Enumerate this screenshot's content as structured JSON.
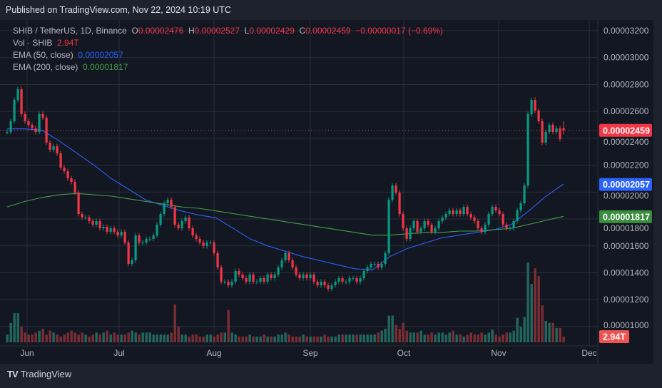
{
  "published": "Published on TradingView.com, Nov 22, 2024 10:19 UTC",
  "legend": {
    "symbol": "SHIB / TetherUS, 1D, Binance",
    "o_label": "O",
    "o": "0.00002476",
    "h_label": "H",
    "h": "0.00002527",
    "l_label": "L",
    "l": "0.00002429",
    "c_label": "C",
    "c": "0.00002459",
    "change": "−0.00000017 (−0.69%)",
    "vol_label": "Vol · SHIB",
    "vol": "2.94T",
    "ema50_label": "EMA (50, close)",
    "ema50": "0.00002057",
    "ema200_label": "EMA (200, close)",
    "ema200": "0.00001817"
  },
  "badges": {
    "last_price": "0.00002459",
    "ema50": "0.00002057",
    "ema200": "0.00001817",
    "volume": "2.94T"
  },
  "brand": "TradingView",
  "colors": {
    "up": "#089981",
    "down": "#f23645",
    "vol_up": "#22675e",
    "vol_down": "#7a2e33",
    "ema50": "#2962ff",
    "ema200": "#43a047",
    "bg": "#131722",
    "grid": "#2a2e39"
  },
  "chart_data": {
    "type": "candlestick",
    "title": "SHIB / TetherUS, 1D, Binance",
    "x_tick_labels": [
      "Jun",
      "Jul",
      "Aug",
      "Sep",
      "Oct",
      "Nov",
      "Dec"
    ],
    "y_tick_labels": [
      "0.00003200",
      "0.00003000",
      "0.00002800",
      "0.00002600",
      "0.00002400",
      "0.00002200",
      "0.00002000",
      "0.00001800",
      "0.00001600",
      "0.00001400",
      "0.00001200",
      "0.00001000"
    ],
    "ylim": [
      9.8e-06,
      3.22e-05
    ],
    "grid": true,
    "last_candle": {
      "open": 2.476e-05,
      "high": 2.527e-05,
      "low": 2.429e-05,
      "close": 2.459e-05
    },
    "close": [
      2.447e-05,
      2.527e-05,
      2.686e-05,
      2.765e-05,
      2.58e-05,
      2.527e-05,
      2.5e-05,
      2.474e-05,
      2.447e-05,
      2.58e-05,
      2.553e-05,
      2.368e-05,
      2.315e-05,
      2.341e-05,
      2.288e-05,
      2.182e-05,
      2.155e-05,
      2.102e-05,
      2.076e-05,
      1.996e-05,
      1.837e-05,
      1.811e-05,
      1.811e-05,
      1.784e-05,
      1.758e-05,
      1.784e-05,
      1.731e-05,
      1.742e-05,
      1.705e-05,
      1.731e-05,
      1.705e-05,
      1.678e-05,
      1.705e-05,
      1.625e-05,
      1.466e-05,
      1.493e-05,
      1.678e-05,
      1.625e-05,
      1.625e-05,
      1.652e-05,
      1.652e-05,
      1.678e-05,
      1.758e-05,
      1.837e-05,
      1.917e-05,
      1.943e-05,
      1.89e-05,
      1.758e-05,
      1.731e-05,
      1.784e-05,
      1.811e-05,
      1.731e-05,
      1.678e-05,
      1.652e-05,
      1.625e-05,
      1.599e-05,
      1.625e-05,
      1.625e-05,
      1.546e-05,
      1.44e-05,
      1.334e-05,
      1.334e-05,
      1.307e-05,
      1.334e-05,
      1.413e-05,
      1.387e-05,
      1.36e-05,
      1.334e-05,
      1.387e-05,
      1.334e-05,
      1.334e-05,
      1.36e-05,
      1.334e-05,
      1.387e-05,
      1.36e-05,
      1.387e-05,
      1.44e-05,
      1.493e-05,
      1.546e-05,
      1.493e-05,
      1.44e-05,
      1.387e-05,
      1.36e-05,
      1.387e-05,
      1.36e-05,
      1.387e-05,
      1.334e-05,
      1.307e-05,
      1.334e-05,
      1.307e-05,
      1.281e-05,
      1.307e-05,
      1.334e-05,
      1.36e-05,
      1.334e-05,
      1.334e-05,
      1.36e-05,
      1.36e-05,
      1.334e-05,
      1.36e-05,
      1.413e-05,
      1.44e-05,
      1.466e-05,
      1.466e-05,
      1.44e-05,
      1.466e-05,
      1.546e-05,
      1.943e-05,
      2.049e-05,
      1.996e-05,
      1.837e-05,
      1.731e-05,
      1.652e-05,
      1.731e-05,
      1.784e-05,
      1.705e-05,
      1.731e-05,
      1.784e-05,
      1.758e-05,
      1.705e-05,
      1.731e-05,
      1.784e-05,
      1.811e-05,
      1.837e-05,
      1.864e-05,
      1.837e-05,
      1.864e-05,
      1.837e-05,
      1.89e-05,
      1.837e-05,
      1.811e-05,
      1.784e-05,
      1.731e-05,
      1.705e-05,
      1.758e-05,
      1.837e-05,
      1.89e-05,
      1.864e-05,
      1.837e-05,
      1.758e-05,
      1.731e-05,
      1.731e-05,
      1.784e-05,
      1.864e-05,
      1.917e-05,
      2.049e-05,
      2.58e-05,
      2.686e-05,
      2.606e-05,
      2.527e-05,
      2.368e-05,
      2.447e-05,
      2.5e-05,
      2.447e-05,
      2.474e-05,
      2.394e-05,
      2.459e-05
    ],
    "volume_T": [
      4,
      10,
      15,
      15,
      8,
      5,
      4,
      4,
      5,
      6,
      7,
      4,
      6,
      5,
      4,
      3,
      4,
      5,
      6,
      5,
      4,
      5,
      4,
      3,
      4,
      5,
      4,
      5,
      6,
      4,
      5,
      4,
      4,
      4,
      5,
      6,
      5,
      4,
      5,
      5,
      5,
      4,
      4,
      4,
      4,
      4,
      5,
      19.5,
      8,
      4,
      4,
      3,
      4,
      4,
      3,
      3,
      4,
      4,
      3,
      4,
      5,
      5,
      16.6,
      5,
      4,
      3,
      3,
      3,
      4,
      3,
      3,
      3,
      4,
      3,
      3,
      3,
      4,
      4,
      5,
      4,
      3,
      3,
      3,
      4,
      3,
      3,
      3,
      3,
      3,
      4,
      3,
      3,
      3,
      4,
      4,
      4,
      4,
      4,
      4,
      4,
      4,
      4,
      4,
      4,
      5,
      6,
      7,
      13.7,
      13.7,
      9,
      7,
      10,
      6,
      5,
      5,
      5,
      6,
      4,
      4,
      5,
      4,
      5,
      5,
      4,
      5,
      6,
      4,
      4,
      3,
      4,
      5,
      4,
      4,
      5,
      4,
      5,
      6.6,
      4,
      3,
      4,
      5,
      5,
      6,
      12.6,
      8,
      13,
      41,
      30,
      38,
      34,
      19,
      11,
      10,
      10,
      7.4,
      7.4,
      2.94
    ],
    "series": [
      {
        "name": "EMA (50, close)",
        "color": "#2962ff",
        "values": [
          2.47e-05,
          2.47e-05,
          2.46e-05,
          2.38e-05,
          2.29e-05,
          2.2e-05,
          2.1e-05,
          2.02e-05,
          1.94e-05,
          1.9e-05,
          1.86e-05,
          1.83e-05,
          1.81e-05,
          1.73e-05,
          1.65e-05,
          1.6e-05,
          1.56e-05,
          1.52e-05,
          1.49e-05,
          1.46e-05,
          1.43e-05,
          1.42e-05,
          1.52e-05,
          1.58e-05,
          1.62e-05,
          1.66e-05,
          1.68e-05,
          1.7e-05,
          1.72e-05,
          1.76e-05,
          1.86e-05,
          1.97e-05,
          2.06e-05
        ]
      },
      {
        "name": "EMA (200, close)",
        "color": "#43a047",
        "values": [
          1.89e-05,
          1.93e-05,
          1.96e-05,
          1.98e-05,
          1.99e-05,
          1.98e-05,
          1.97e-05,
          1.95e-05,
          1.93e-05,
          1.91e-05,
          1.89e-05,
          1.88e-05,
          1.86e-05,
          1.84e-05,
          1.82e-05,
          1.8e-05,
          1.78e-05,
          1.76e-05,
          1.74e-05,
          1.72e-05,
          1.7e-05,
          1.68e-05,
          1.68e-05,
          1.69e-05,
          1.7e-05,
          1.7e-05,
          1.71e-05,
          1.71e-05,
          1.72e-05,
          1.73e-05,
          1.76e-05,
          1.79e-05,
          1.82e-05
        ]
      }
    ]
  }
}
